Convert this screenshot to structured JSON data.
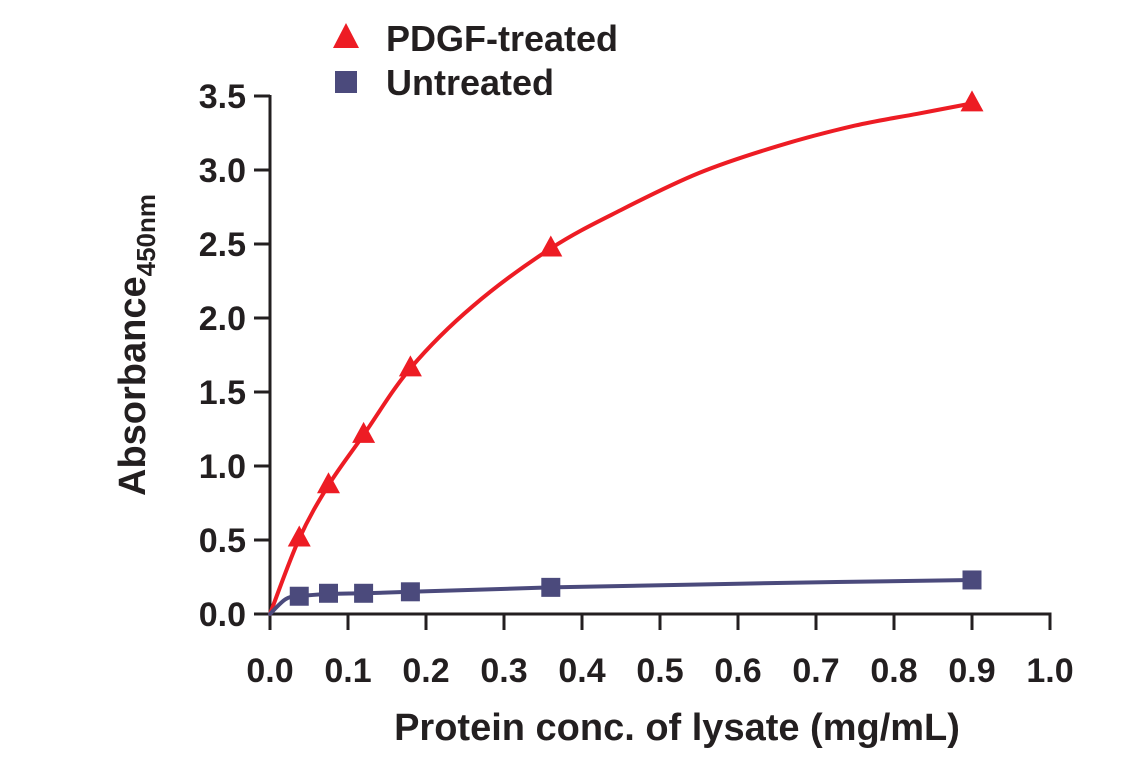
{
  "chart_data": {
    "type": "line",
    "xlabel": "Protein conc. of lysate (mg/mL)",
    "ylabel": {
      "main": "Absorbance",
      "subscript": "450nm"
    },
    "xlim": [
      0,
      1.0
    ],
    "ylim": [
      0,
      3.5
    ],
    "xticks": [
      "0.0",
      "0.1",
      "0.2",
      "0.3",
      "0.4",
      "0.5",
      "0.6",
      "0.7",
      "0.8",
      "0.9",
      "1.0"
    ],
    "yticks": [
      "0.0",
      "0.5",
      "1.0",
      "1.5",
      "2.0",
      "2.5",
      "3.0",
      "3.5"
    ],
    "grid": false,
    "legend_position": "top-left",
    "series": [
      {
        "name": "PDGF-treated",
        "marker": "triangle",
        "color": "#ed1c24",
        "points": [
          {
            "x": 0.0375,
            "y": 0.51
          },
          {
            "x": 0.075,
            "y": 0.87
          },
          {
            "x": 0.12,
            "y": 1.21
          },
          {
            "x": 0.18,
            "y": 1.66
          },
          {
            "x": 0.36,
            "y": 2.47
          },
          {
            "x": 0.9,
            "y": 3.45
          }
        ],
        "fit_curve": [
          [
            0.0,
            0.0
          ],
          [
            0.0375,
            0.51
          ],
          [
            0.075,
            0.87
          ],
          [
            0.12,
            1.21
          ],
          [
            0.18,
            1.66
          ],
          [
            0.26,
            2.08
          ],
          [
            0.36,
            2.47
          ],
          [
            0.45,
            2.73
          ],
          [
            0.55,
            2.98
          ],
          [
            0.65,
            3.16
          ],
          [
            0.75,
            3.3
          ],
          [
            0.83,
            3.38
          ],
          [
            0.9,
            3.45
          ]
        ]
      },
      {
        "name": "Untreated",
        "marker": "square",
        "color": "#4b4a7c",
        "points": [
          {
            "x": 0.0375,
            "y": 0.12
          },
          {
            "x": 0.075,
            "y": 0.14
          },
          {
            "x": 0.12,
            "y": 0.14
          },
          {
            "x": 0.18,
            "y": 0.15
          },
          {
            "x": 0.36,
            "y": 0.18
          },
          {
            "x": 0.9,
            "y": 0.23
          }
        ],
        "fit_curve": [
          [
            0.0,
            0.0
          ],
          [
            0.02,
            0.1
          ],
          [
            0.0375,
            0.12
          ],
          [
            0.075,
            0.135
          ],
          [
            0.12,
            0.14
          ],
          [
            0.18,
            0.15
          ],
          [
            0.36,
            0.18
          ],
          [
            0.6,
            0.205
          ],
          [
            0.9,
            0.23
          ]
        ]
      }
    ]
  }
}
